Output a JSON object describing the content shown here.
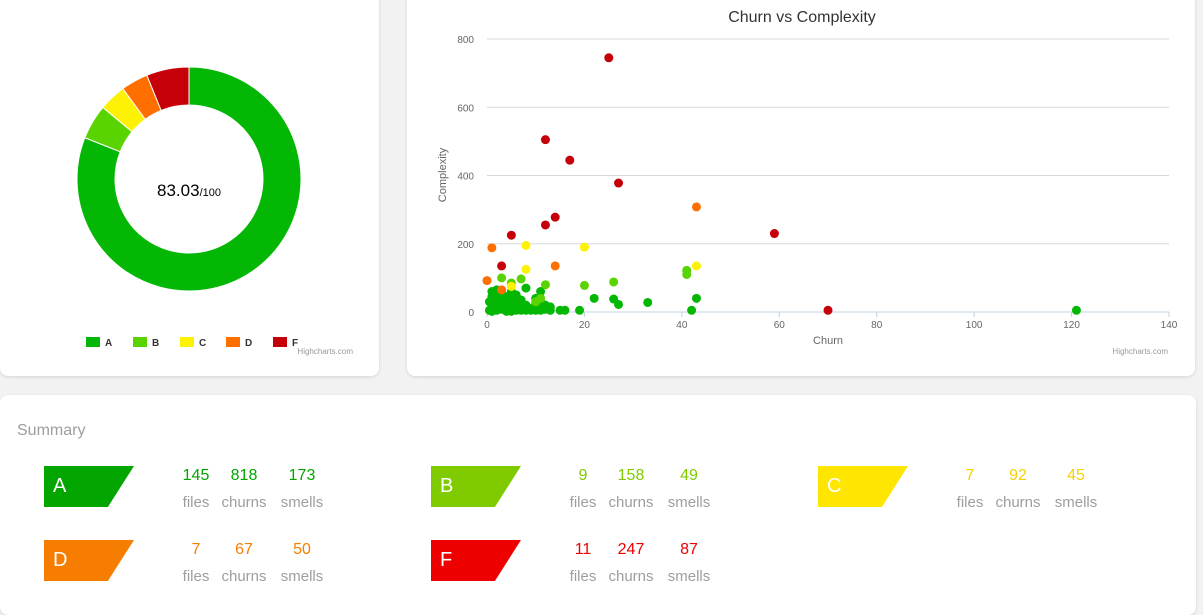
{
  "donut": {
    "score_value": "83.03",
    "score_suffix": "/100",
    "credit": "Highcharts.com"
  },
  "scatter": {
    "credit": "Highcharts.com"
  },
  "summary": {
    "title": "Summary",
    "grades": [
      {
        "grade": "A",
        "color": "#03a600",
        "files": "145",
        "churns": "818",
        "smells": "173",
        "files_label": "files",
        "churns_label": "churns",
        "smells_label": "smells"
      },
      {
        "grade": "B",
        "color": "#7fcb00",
        "files": "9",
        "churns": "158",
        "smells": "49",
        "files_label": "files",
        "churns_label": "churns",
        "smells_label": "smells"
      },
      {
        "grade": "C",
        "color": "#ffe600",
        "text_color": "#f5d000",
        "files": "7",
        "churns": "92",
        "smells": "45",
        "files_label": "files",
        "churns_label": "churns",
        "smells_label": "smells"
      },
      {
        "grade": "D",
        "color": "#f77d00",
        "files": "7",
        "churns": "67",
        "smells": "50",
        "files_label": "files",
        "churns_label": "churns",
        "smells_label": "smells"
      },
      {
        "grade": "F",
        "color": "#ee0000",
        "files": "11",
        "churns": "247",
        "smells": "87",
        "files_label": "files",
        "churns_label": "churns",
        "smells_label": "smells"
      }
    ]
  },
  "chart_data": [
    {
      "type": "pie",
      "variant": "donut",
      "title": "",
      "labels": [
        "A",
        "B",
        "C",
        "D",
        "F"
      ],
      "values": [
        145,
        9,
        7,
        7,
        11
      ],
      "colors": [
        "#04b704",
        "#5ad400",
        "#fdf204",
        "#ff6f00",
        "#c60008"
      ],
      "legend": "bottom-center"
    },
    {
      "type": "scatter",
      "title": "Churn vs Complexity",
      "xlabel": "Churn",
      "ylabel": "Complexity",
      "xlim": [
        0,
        140
      ],
      "ylim": [
        0,
        800
      ],
      "xticks": [
        0,
        20,
        40,
        60,
        80,
        100,
        120,
        140
      ],
      "yticks": [
        0,
        200,
        400,
        600,
        800
      ],
      "grid": "horizontal",
      "legend": "none",
      "series": [
        {
          "grade": "A",
          "color": "#04b704",
          "points": [
            [
              1,
              60
            ],
            [
              2,
              55
            ],
            [
              1,
              45
            ],
            [
              2,
              35
            ],
            [
              3,
              20
            ],
            [
              1,
              15
            ],
            [
              0.5,
              5
            ],
            [
              1,
              2
            ],
            [
              2,
              5
            ],
            [
              3,
              8
            ],
            [
              4,
              45
            ],
            [
              4,
              30
            ],
            [
              4,
              10
            ],
            [
              5,
              60
            ],
            [
              5,
              2
            ],
            [
              6,
              50
            ],
            [
              6,
              25
            ],
            [
              6,
              5
            ],
            [
              7,
              35
            ],
            [
              7,
              15
            ],
            [
              8,
              70
            ],
            [
              8,
              5
            ],
            [
              9,
              10
            ],
            [
              10,
              40
            ],
            [
              10,
              5
            ],
            [
              11,
              60
            ],
            [
              11,
              30
            ],
            [
              12,
              20
            ],
            [
              13,
              5
            ],
            [
              15,
              5
            ],
            [
              16,
              5
            ],
            [
              19,
              5
            ],
            [
              22,
              40
            ],
            [
              26,
              38
            ],
            [
              27,
              22
            ],
            [
              33,
              28
            ],
            [
              42,
              5
            ],
            [
              43,
              40
            ],
            [
              121,
              5
            ],
            [
              1,
              25
            ],
            [
              2,
              10
            ],
            [
              3,
              40
            ],
            [
              1,
              35
            ],
            [
              2,
              65
            ],
            [
              0.5,
              30
            ],
            [
              5,
              40
            ],
            [
              3,
              55
            ],
            [
              7,
              5
            ],
            [
              9,
              5
            ],
            [
              4,
              2
            ],
            [
              6,
              15
            ],
            [
              8,
              20
            ],
            [
              10,
              25
            ],
            [
              2,
              20
            ],
            [
              1,
              8
            ],
            [
              5,
              20
            ],
            [
              11,
              5
            ],
            [
              12,
              8
            ],
            [
              13,
              15
            ]
          ]
        },
        {
          "grade": "B",
          "color": "#5ad400",
          "points": [
            [
              3,
              100
            ],
            [
              5,
              85
            ],
            [
              7,
              97
            ],
            [
              10,
              30
            ],
            [
              12,
              80
            ],
            [
              20,
              78
            ],
            [
              26,
              88
            ],
            [
              41,
              110
            ],
            [
              41,
              122
            ],
            [
              11,
              40
            ]
          ]
        },
        {
          "grade": "C",
          "color": "#fdf204",
          "points": [
            [
              8,
              195
            ],
            [
              8,
              125
            ],
            [
              20,
              190
            ],
            [
              43,
              135
            ],
            [
              5,
              75
            ]
          ]
        },
        {
          "grade": "D",
          "color": "#ff6f00",
          "points": [
            [
              1,
              188
            ],
            [
              0,
              92
            ],
            [
              14,
              135
            ],
            [
              43,
              308
            ],
            [
              3,
              65
            ]
          ]
        },
        {
          "grade": "F",
          "color": "#c60008",
          "points": [
            [
              3,
              135
            ],
            [
              5,
              225
            ],
            [
              12,
              255
            ],
            [
              14,
              278
            ],
            [
              12,
              505
            ],
            [
              17,
              445
            ],
            [
              25,
              745
            ],
            [
              27,
              378
            ],
            [
              59,
              230
            ],
            [
              70,
              5
            ]
          ]
        }
      ]
    }
  ]
}
